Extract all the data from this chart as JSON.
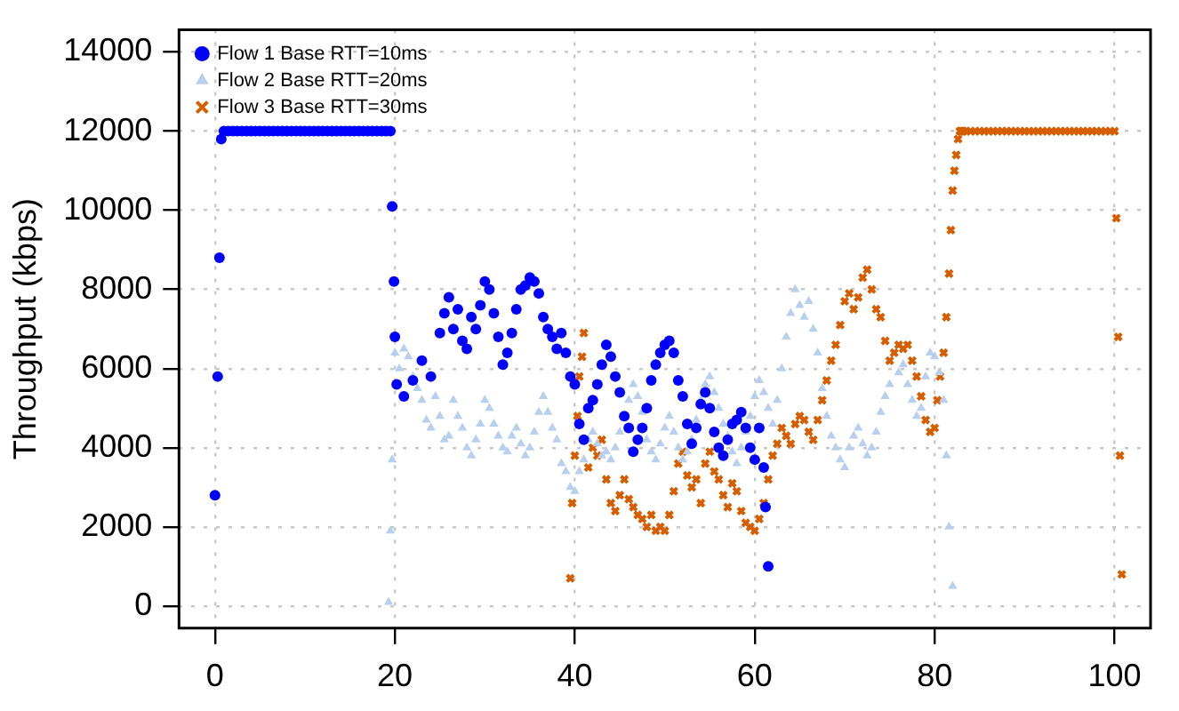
{
  "chart_data": {
    "type": "scatter",
    "ylabel": "Throughput (kbps)",
    "xlim": [
      -4,
      104
    ],
    "ylim": [
      -560,
      14560
    ],
    "xticks": [
      0,
      20,
      40,
      60,
      80,
      100
    ],
    "yticks": [
      0,
      2000,
      4000,
      6000,
      8000,
      10000,
      12000,
      14000
    ],
    "grid": true,
    "legend": "top left",
    "series": [
      {
        "name": "Flow 1 Base RTT=10ms",
        "color": "#0000ff",
        "marker": "circle",
        "x": [
          0,
          0.3,
          0.5,
          0.7,
          1,
          1.5,
          2,
          2.5,
          3,
          3.5,
          4,
          4.5,
          5,
          5.5,
          6,
          6.5,
          7,
          7.5,
          8,
          8.5,
          9,
          9.5,
          10,
          10.5,
          11,
          11.5,
          12,
          12.5,
          13,
          13.5,
          14,
          14.5,
          15,
          15.5,
          16,
          16.5,
          17,
          17.5,
          18,
          18.5,
          19,
          19.5,
          19.7,
          19.9,
          20,
          20.2,
          21,
          22,
          23,
          24,
          25,
          25.5,
          26,
          26.5,
          27,
          27.5,
          28,
          28.5,
          29,
          29.5,
          30,
          30.5,
          31,
          31.5,
          32,
          32.5,
          33,
          33.5,
          34,
          34.5,
          35,
          35.5,
          36,
          36.5,
          37,
          37.5,
          38,
          38.5,
          39,
          39.5,
          40,
          40.5,
          41,
          41.5,
          42,
          42.5,
          43,
          43.5,
          44,
          44.5,
          45,
          45.5,
          46,
          46.5,
          47,
          47.5,
          48,
          48.5,
          49,
          49.5,
          50,
          50.5,
          51,
          51.5,
          52,
          52.5,
          53,
          53.5,
          54,
          54.5,
          55,
          55.5,
          56,
          56.5,
          57,
          57.5,
          58,
          58.5,
          59,
          59.5,
          60,
          60.5,
          61,
          61.2,
          61.5
        ],
        "values": [
          2800,
          5800,
          8800,
          11800,
          12000,
          12000,
          12000,
          12000,
          12000,
          12000,
          12000,
          12000,
          12000,
          12000,
          12000,
          12000,
          12000,
          12000,
          12000,
          12000,
          12000,
          12000,
          12000,
          12000,
          12000,
          12000,
          12000,
          12000,
          12000,
          12000,
          12000,
          12000,
          12000,
          12000,
          12000,
          12000,
          12000,
          12000,
          12000,
          12000,
          12000,
          12000,
          10100,
          8200,
          6800,
          5600,
          5300,
          5700,
          6200,
          5800,
          6900,
          7400,
          7800,
          7000,
          7500,
          6700,
          6500,
          7300,
          7000,
          7600,
          8200,
          8000,
          7400,
          6800,
          6100,
          6400,
          6900,
          7500,
          8000,
          8100,
          8300,
          8200,
          7900,
          7300,
          7000,
          6800,
          6500,
          6900,
          6400,
          5800,
          5600,
          4600,
          4200,
          5000,
          5200,
          5600,
          6100,
          6600,
          6300,
          5800,
          5400,
          4800,
          4500,
          3900,
          4200,
          4500,
          5000,
          5700,
          6100,
          6400,
          6600,
          6700,
          6400,
          5700,
          5300,
          4600,
          4100,
          4500,
          5100,
          5400,
          5000,
          4400,
          4000,
          3800,
          4200,
          4600,
          4700,
          4900,
          4500,
          4000,
          3700,
          4500,
          3500,
          2500,
          1000
        ]
      },
      {
        "name": "Flow 2 Base RTT=20ms",
        "color": "#b8cfee",
        "marker": "triangle",
        "x": [
          19.3,
          19.5,
          19.7,
          20,
          20.5,
          21,
          21.5,
          22,
          22.5,
          23,
          23.5,
          24,
          24.5,
          25,
          25.5,
          26,
          26.5,
          27,
          27.5,
          28,
          28.5,
          29,
          29.5,
          30,
          30.5,
          31,
          31.5,
          32,
          32.5,
          33,
          33.5,
          34,
          34.5,
          35,
          35.5,
          36,
          36.5,
          37,
          37.5,
          38,
          38.5,
          39,
          39.5,
          40,
          40.5,
          41,
          41.5,
          42,
          42.5,
          43,
          43.5,
          44,
          44.5,
          45,
          45.5,
          46,
          46.5,
          47,
          47.5,
          48,
          48.5,
          49,
          49.5,
          50,
          50.5,
          51,
          51.5,
          52,
          52.5,
          53,
          53.5,
          54,
          54.5,
          55,
          55.5,
          56,
          56.5,
          57,
          57.5,
          58,
          58.5,
          59,
          59.5,
          60,
          60.5,
          61,
          61.5,
          62,
          62.5,
          63,
          63.5,
          64,
          64.5,
          65,
          65.5,
          66,
          66.5,
          67,
          67.5,
          68,
          68.5,
          69,
          69.5,
          70,
          70.5,
          71,
          71.5,
          72,
          72.5,
          73,
          73.5,
          74,
          74.5,
          75,
          76,
          76.5,
          77,
          77.5,
          78,
          78.5,
          79,
          79.5,
          80,
          80.5,
          81,
          81.3,
          81.6,
          82
        ],
        "values": [
          100,
          1900,
          3700,
          6400,
          6000,
          6500,
          6300,
          5800,
          5500,
          5200,
          4700,
          4500,
          5300,
          4800,
          4200,
          4300,
          5200,
          4800,
          4500,
          4000,
          3800,
          4200,
          4600,
          5200,
          5000,
          4600,
          4300,
          4000,
          3900,
          4300,
          4500,
          4100,
          3800,
          4000,
          4400,
          4900,
          5300,
          4900,
          4500,
          4200,
          3600,
          3400,
          3000,
          2900,
          3400,
          3700,
          4200,
          4400,
          4100,
          3800,
          3900,
          3700,
          4000,
          4400,
          null,
          5200,
          5600,
          5300,
          4900,
          4200,
          3900,
          3700,
          4100,
          4500,
          4800,
          4400,
          4000,
          3700,
          3900,
          4200,
          4700,
          5200,
          5600,
          5800,
          5400,
          5000,
          4600,
          4300,
          3900,
          3600,
          4000,
          4400,
          4800,
          5300,
          5700,
          5400,
          5000,
          4600,
          5200,
          6000,
          6800,
          7400,
          8000,
          7600,
          7300,
          7700,
          7000,
          6400,
          5500,
          4800,
          4300,
          4000,
          3700,
          3500,
          4000,
          4300,
          4500,
          4100,
          3800,
          4000,
          4400,
          4900,
          5300,
          5600,
          5900,
          6100,
          5600,
          5200,
          4800,
          5000,
          5800,
          6400,
          6300,
          5900,
          5200,
          3800,
          2000,
          500
        ]
      },
      {
        "name": "Flow 3 Base RTT=30ms",
        "color": "#d55e00",
        "marker": "cross",
        "x": [
          39.5,
          39.7,
          40,
          40.3,
          40.5,
          40.8,
          41,
          41.5,
          42,
          42.5,
          43,
          43.5,
          44,
          44.5,
          45,
          45.5,
          46,
          46.5,
          47,
          47.5,
          48,
          48.5,
          49,
          49.5,
          50,
          50.5,
          51,
          51.5,
          52,
          52.5,
          53,
          53.5,
          54,
          54.5,
          55,
          55.5,
          56,
          56.5,
          57,
          57.5,
          58,
          58.5,
          59,
          59.5,
          60,
          60.5,
          61,
          61.5,
          62,
          62.5,
          63,
          63.5,
          64,
          64.5,
          65,
          65.5,
          66,
          66.5,
          67,
          67.5,
          68,
          68.5,
          69,
          69.5,
          70,
          70.5,
          71,
          71.5,
          72,
          72.5,
          73,
          73.5,
          74,
          74.5,
          75,
          75.5,
          76,
          76.5,
          77,
          77.5,
          78,
          78.5,
          79,
          79.5,
          80,
          80.3,
          80.6,
          81,
          81.3,
          81.6,
          81.8,
          82,
          82.2,
          82.4,
          82.6,
          82.8,
          82.9,
          83,
          83.2,
          83.5,
          84,
          84.5,
          85,
          85.5,
          86,
          86.5,
          87,
          87.5,
          88,
          88.5,
          89,
          89.5,
          90,
          90.5,
          91,
          91.5,
          92,
          92.5,
          93,
          93.5,
          94,
          94.5,
          95,
          95.5,
          96,
          96.5,
          97,
          97.5,
          98,
          98.5,
          99,
          99.5,
          100,
          100.2,
          100.4,
          100.6,
          100.8
        ],
        "values": [
          700,
          2600,
          3800,
          4800,
          5800,
          6300,
          6900,
          3500,
          4000,
          3800,
          4200,
          3200,
          2600,
          2400,
          2800,
          3200,
          2700,
          2500,
          2300,
          2200,
          2000,
          2300,
          1900,
          2000,
          1900,
          2300,
          2900,
          3600,
          3900,
          3300,
          3000,
          3200,
          2600,
          3600,
          3900,
          3400,
          3200,
          2800,
          2500,
          3100,
          2900,
          2400,
          2100,
          2000,
          1900,
          2200,
          2600,
          3200,
          3800,
          4100,
          4500,
          4300,
          4100,
          4600,
          4800,
          4700,
          4400,
          4200,
          4700,
          5200,
          5700,
          6200,
          6600,
          7100,
          7700,
          7900,
          7500,
          7800,
          8300,
          8500,
          8000,
          7500,
          7300,
          6700,
          6200,
          6400,
          6600,
          6500,
          6600,
          6200,
          5800,
          5300,
          4700,
          4400,
          4500,
          5200,
          5800,
          6400,
          7300,
          8400,
          9500,
          10500,
          11000,
          11400,
          11800,
          12000,
          12000,
          12000,
          12000,
          12000,
          12000,
          12000,
          12000,
          12000,
          12000,
          12000,
          12000,
          12000,
          12000,
          12000,
          12000,
          12000,
          12000,
          12000,
          12000,
          12000,
          12000,
          12000,
          12000,
          12000,
          12000,
          12000,
          12000,
          12000,
          12000,
          12000,
          12000,
          12000,
          12000,
          12000,
          12000,
          12000,
          12000,
          9800,
          6800,
          3800,
          800
        ]
      }
    ]
  }
}
